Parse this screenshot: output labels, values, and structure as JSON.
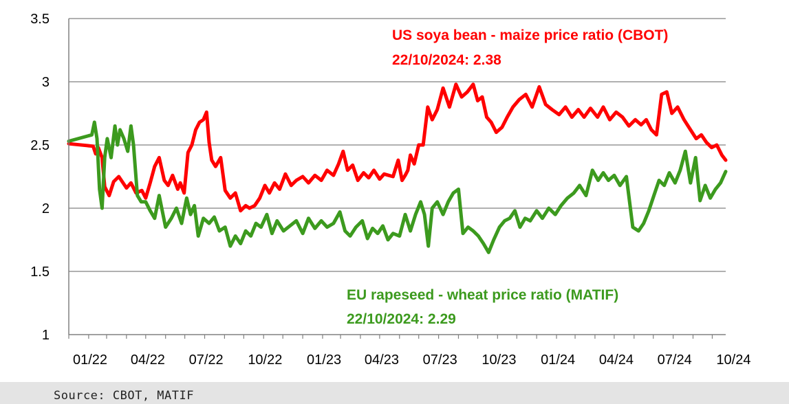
{
  "chart_data": {
    "type": "line",
    "title": "",
    "xlabel": "",
    "ylabel": "",
    "ylim": [
      1,
      3.5
    ],
    "yticks": [
      "1",
      "1.5",
      "2",
      "2.5",
      "3",
      "3.5"
    ],
    "xticks": [
      "01/22",
      "04/22",
      "07/22",
      "10/22",
      "01/23",
      "04/23",
      "07/23",
      "10/23",
      "01/24",
      "04/24",
      "07/24",
      "10/24"
    ],
    "grid": true,
    "series": [
      {
        "name": "US soya bean - maize price ratio (CBOT)",
        "latest_label": "22/10/2024: 2.38",
        "color": "#ff0000",
        "x": [
          "2022-01-01",
          "2022-02-08",
          "2022-02-12",
          "2022-02-16",
          "2022-02-22",
          "2022-02-26",
          "2022-03-05",
          "2022-03-12",
          "2022-03-20",
          "2022-04-01",
          "2022-04-08",
          "2022-04-16",
          "2022-04-25",
          "2022-05-01",
          "2022-05-08",
          "2022-05-15",
          "2022-05-22",
          "2022-05-30",
          "2022-06-05",
          "2022-06-12",
          "2022-06-20",
          "2022-06-24",
          "2022-06-30",
          "2022-07-06",
          "2022-07-12",
          "2022-07-18",
          "2022-07-24",
          "2022-07-30",
          "2022-08-04",
          "2022-08-08",
          "2022-08-12",
          "2022-08-18",
          "2022-08-26",
          "2022-09-02",
          "2022-09-10",
          "2022-09-18",
          "2022-09-26",
          "2022-10-04",
          "2022-10-10",
          "2022-10-18",
          "2022-10-26",
          "2022-11-03",
          "2022-11-10",
          "2022-11-18",
          "2022-11-26",
          "2022-12-05",
          "2022-12-14",
          "2022-12-22",
          "2023-01-01",
          "2023-01-10",
          "2023-01-20",
          "2023-01-30",
          "2023-02-08",
          "2023-02-18",
          "2023-02-26",
          "2023-03-05",
          "2023-03-12",
          "2023-03-20",
          "2023-03-28",
          "2023-04-06",
          "2023-04-14",
          "2023-04-22",
          "2023-05-01",
          "2023-05-08",
          "2023-05-15",
          "2023-05-22",
          "2023-05-30",
          "2023-06-05",
          "2023-06-10",
          "2023-06-14",
          "2023-06-18",
          "2023-06-24",
          "2023-07-01",
          "2023-07-08",
          "2023-07-15",
          "2023-07-22",
          "2023-07-30",
          "2023-08-08",
          "2023-08-18",
          "2023-08-28",
          "2023-09-06",
          "2023-09-15",
          "2023-09-24",
          "2023-10-01",
          "2023-10-08",
          "2023-10-15",
          "2023-10-22",
          "2023-10-30",
          "2023-11-08",
          "2023-11-16",
          "2023-11-25",
          "2023-12-05",
          "2023-12-15",
          "2023-12-25",
          "2024-01-05",
          "2024-01-15",
          "2024-01-25",
          "2024-02-05",
          "2024-02-15",
          "2024-02-25",
          "2024-03-06",
          "2024-03-15",
          "2024-03-25",
          "2024-04-05",
          "2024-04-14",
          "2024-04-24",
          "2024-05-04",
          "2024-05-14",
          "2024-05-24",
          "2024-06-03",
          "2024-06-12",
          "2024-06-20",
          "2024-06-28",
          "2024-07-06",
          "2024-07-14",
          "2024-07-22",
          "2024-07-30",
          "2024-08-08",
          "2024-08-18",
          "2024-08-28",
          "2024-09-06",
          "2024-09-14",
          "2024-09-22",
          "2024-09-30",
          "2024-10-08",
          "2024-10-16",
          "2024-10-22"
        ],
        "values": [
          2.51,
          2.49,
          2.43,
          2.48,
          2.4,
          2.17,
          2.1,
          2.21,
          2.25,
          2.16,
          2.2,
          2.12,
          2.14,
          2.08,
          2.2,
          2.33,
          2.4,
          2.22,
          2.18,
          2.26,
          2.15,
          2.2,
          2.12,
          2.44,
          2.5,
          2.62,
          2.68,
          2.7,
          2.76,
          2.52,
          2.38,
          2.33,
          2.4,
          2.14,
          2.08,
          2.12,
          1.98,
          2.02,
          2.0,
          2.02,
          2.08,
          2.18,
          2.12,
          2.2,
          2.15,
          2.27,
          2.18,
          2.22,
          2.25,
          2.2,
          2.26,
          2.22,
          2.3,
          2.26,
          2.35,
          2.45,
          2.3,
          2.34,
          2.22,
          2.28,
          2.24,
          2.3,
          2.23,
          2.27,
          2.26,
          2.25,
          2.38,
          2.22,
          2.26,
          2.3,
          2.42,
          2.35,
          2.5,
          2.5,
          2.8,
          2.7,
          2.78,
          2.95,
          2.8,
          2.98,
          2.88,
          2.92,
          2.98,
          2.85,
          2.88,
          2.72,
          2.68,
          2.6,
          2.64,
          2.72,
          2.8,
          2.86,
          2.9,
          2.8,
          2.96,
          2.82,
          2.78,
          2.74,
          2.8,
          2.72,
          2.78,
          2.72,
          2.79,
          2.72,
          2.8,
          2.7,
          2.76,
          2.72,
          2.65,
          2.7,
          2.66,
          2.7,
          2.62,
          2.58,
          2.9,
          2.92,
          2.75,
          2.8,
          2.7,
          2.62,
          2.55,
          2.58,
          2.52,
          2.48,
          2.5,
          2.42,
          2.38
        ]
      },
      {
        "name": "EU rapeseed - wheat price ratio (MATIF)",
        "latest_label": "22/10/2024: 2.29",
        "color": "#3c9a1e",
        "x": [
          "2022-01-01",
          "2022-02-06",
          "2022-02-10",
          "2022-02-14",
          "2022-02-18",
          "2022-02-22",
          "2022-02-26",
          "2022-03-02",
          "2022-03-08",
          "2022-03-14",
          "2022-03-18",
          "2022-03-22",
          "2022-03-28",
          "2022-04-03",
          "2022-04-08",
          "2022-04-12",
          "2022-04-18",
          "2022-04-24",
          "2022-05-01",
          "2022-05-08",
          "2022-05-15",
          "2022-05-22",
          "2022-06-01",
          "2022-06-10",
          "2022-06-18",
          "2022-06-26",
          "2022-07-04",
          "2022-07-10",
          "2022-07-16",
          "2022-07-22",
          "2022-07-30",
          "2022-08-08",
          "2022-08-16",
          "2022-08-24",
          "2022-09-02",
          "2022-09-10",
          "2022-09-18",
          "2022-09-26",
          "2022-10-04",
          "2022-10-12",
          "2022-10-20",
          "2022-10-28",
          "2022-11-06",
          "2022-11-14",
          "2022-11-22",
          "2022-12-02",
          "2022-12-12",
          "2022-12-22",
          "2023-01-01",
          "2023-01-10",
          "2023-01-20",
          "2023-01-30",
          "2023-02-08",
          "2023-02-18",
          "2023-02-28",
          "2023-03-08",
          "2023-03-16",
          "2023-03-25",
          "2023-04-04",
          "2023-04-12",
          "2023-04-20",
          "2023-04-28",
          "2023-05-06",
          "2023-05-14",
          "2023-05-22",
          "2023-06-01",
          "2023-06-10",
          "2023-06-18",
          "2023-06-26",
          "2023-07-04",
          "2023-07-10",
          "2023-07-16",
          "2023-07-22",
          "2023-07-30",
          "2023-08-08",
          "2023-08-16",
          "2023-08-24",
          "2023-09-01",
          "2023-09-08",
          "2023-09-16",
          "2023-09-24",
          "2023-10-02",
          "2023-10-10",
          "2023-10-18",
          "2023-10-26",
          "2023-11-04",
          "2023-11-12",
          "2023-11-20",
          "2023-11-28",
          "2023-12-06",
          "2023-12-14",
          "2023-12-22",
          "2024-01-01",
          "2024-01-10",
          "2024-01-20",
          "2024-01-30",
          "2024-02-08",
          "2024-02-18",
          "2024-02-28",
          "2024-03-08",
          "2024-03-18",
          "2024-03-28",
          "2024-04-06",
          "2024-04-14",
          "2024-04-22",
          "2024-05-01",
          "2024-05-10",
          "2024-05-20",
          "2024-05-30",
          "2024-06-08",
          "2024-06-16",
          "2024-06-24",
          "2024-07-02",
          "2024-07-10",
          "2024-07-18",
          "2024-07-26",
          "2024-08-04",
          "2024-08-12",
          "2024-08-20",
          "2024-08-28",
          "2024-09-05",
          "2024-09-12",
          "2024-09-20",
          "2024-09-28",
          "2024-10-06",
          "2024-10-14",
          "2024-10-22"
        ],
        "values": [
          2.53,
          2.58,
          2.68,
          2.55,
          2.15,
          2.0,
          2.4,
          2.55,
          2.4,
          2.65,
          2.5,
          2.62,
          2.55,
          2.45,
          2.65,
          2.5,
          2.1,
          2.05,
          2.05,
          1.98,
          1.92,
          2.1,
          1.85,
          1.92,
          2.0,
          1.88,
          2.08,
          1.95,
          2.02,
          1.78,
          1.92,
          1.88,
          1.93,
          1.82,
          1.85,
          1.7,
          1.78,
          1.72,
          1.82,
          1.78,
          1.88,
          1.85,
          1.95,
          1.8,
          1.9,
          1.82,
          1.86,
          1.9,
          1.8,
          1.92,
          1.84,
          1.9,
          1.85,
          1.88,
          1.97,
          1.82,
          1.78,
          1.85,
          1.9,
          1.76,
          1.84,
          1.8,
          1.86,
          1.75,
          1.8,
          1.78,
          1.95,
          1.82,
          1.95,
          2.05,
          1.95,
          1.7,
          2.0,
          2.05,
          1.95,
          2.05,
          2.12,
          2.15,
          1.8,
          1.85,
          1.82,
          1.78,
          1.72,
          1.65,
          1.75,
          1.85,
          1.9,
          1.92,
          1.98,
          1.85,
          1.92,
          1.9,
          1.98,
          1.92,
          2.0,
          1.95,
          2.02,
          2.08,
          2.12,
          2.18,
          2.1,
          2.3,
          2.22,
          2.28,
          2.22,
          2.26,
          2.18,
          2.25,
          1.85,
          1.82,
          1.88,
          1.98,
          2.1,
          2.22,
          2.18,
          2.28,
          2.2,
          2.3,
          2.45,
          2.2,
          2.4,
          2.06,
          2.18,
          2.08,
          2.15,
          2.2,
          2.29
        ]
      }
    ]
  },
  "annotations": {
    "red_line1": "US soya bean - maize price ratio (CBOT)",
    "red_line2": "22/10/2024: 2.38",
    "green_line1": "EU rapeseed - wheat price ratio (MATIF)",
    "green_line2": "22/10/2024: 2.29"
  },
  "footer": {
    "source": "Source: CBOT, MATIF"
  },
  "colors": {
    "red": "#ff0000",
    "green": "#3c9a1e",
    "grid": "#808080"
  }
}
